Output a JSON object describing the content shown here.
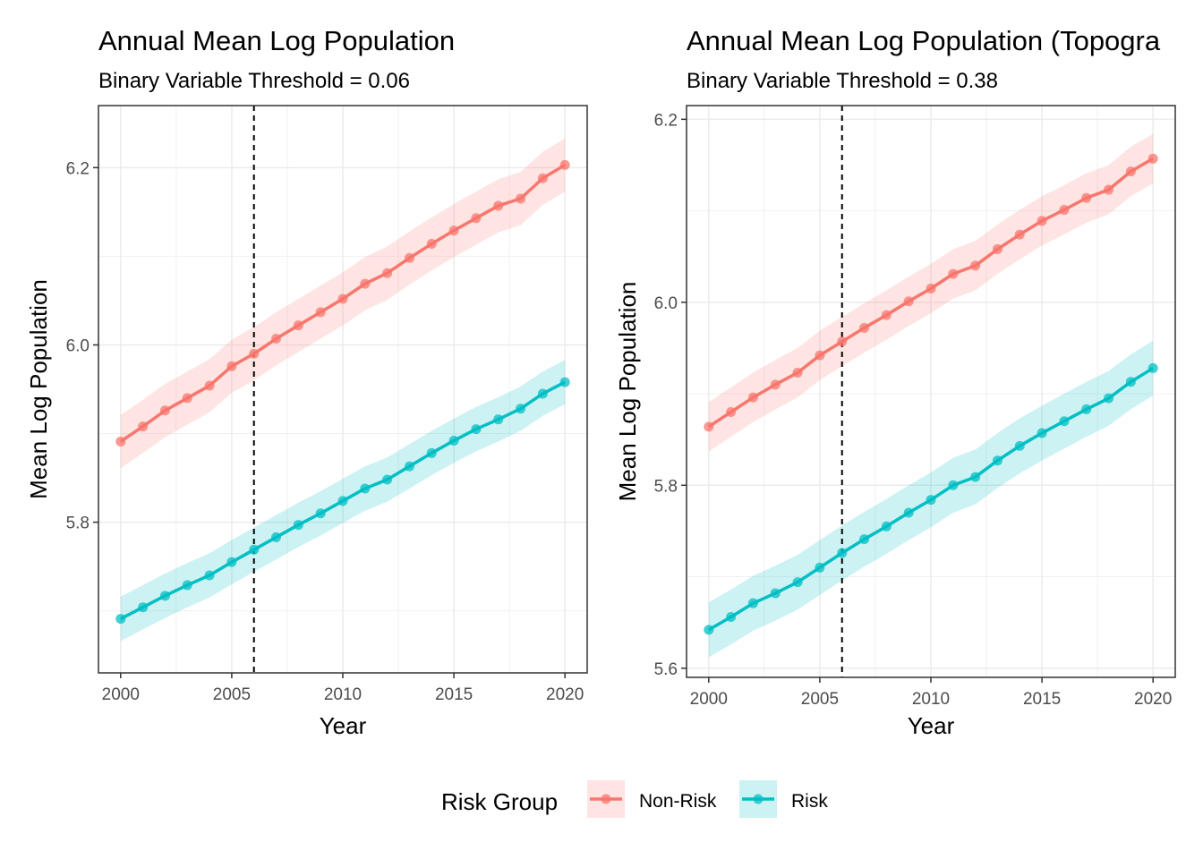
{
  "legend": {
    "title": "Risk Group",
    "entries": [
      {
        "name": "Non-Risk",
        "color": "#F8766D"
      },
      {
        "name": "Risk",
        "color": "#00BFC4"
      }
    ]
  },
  "chart_data": [
    {
      "type": "line",
      "title": "Annual Mean Log Population",
      "subtitle": "Binary Variable Threshold = 0.06",
      "xlabel": "Year",
      "ylabel": "Mean Log Population",
      "xlim": [
        1999,
        2021
      ],
      "ylim": [
        5.63,
        6.27
      ],
      "x_ticks": [
        2000,
        2005,
        2010,
        2015,
        2020
      ],
      "y_ticks": [
        5.8,
        6.0,
        6.2
      ],
      "y_tick_labels": [
        "5.8",
        "6.0",
        "6.2"
      ],
      "grid": true,
      "vline_x": 2006,
      "x": [
        2000,
        2001,
        2002,
        2003,
        2004,
        2005,
        2006,
        2007,
        2008,
        2009,
        2010,
        2011,
        2012,
        2013,
        2014,
        2015,
        2016,
        2017,
        2018,
        2019,
        2020
      ],
      "series": [
        {
          "name": "Non-Risk",
          "color": "#F8766D",
          "values": [
            5.891,
            5.908,
            5.926,
            5.94,
            5.954,
            5.976,
            5.99,
            6.007,
            6.022,
            6.037,
            6.052,
            6.069,
            6.081,
            6.098,
            6.114,
            6.129,
            6.143,
            6.157,
            6.165,
            6.188,
            6.203
          ],
          "ci_half_width": 0.03
        },
        {
          "name": "Risk",
          "color": "#00BFC4",
          "values": [
            5.691,
            5.704,
            5.717,
            5.729,
            5.74,
            5.755,
            5.769,
            5.783,
            5.797,
            5.81,
            5.824,
            5.838,
            5.848,
            5.863,
            5.878,
            5.892,
            5.905,
            5.916,
            5.928,
            5.945,
            5.958
          ],
          "ci_half_width": 0.025
        }
      ]
    },
    {
      "type": "line",
      "title": "Annual Mean Log Population (Topogra",
      "subtitle": "Binary Variable Threshold = 0.38",
      "xlabel": "Year",
      "ylabel": "Mean Log Population",
      "xlim": [
        1999,
        2021
      ],
      "ylim": [
        5.59,
        6.215
      ],
      "x_ticks": [
        2000,
        2005,
        2010,
        2015,
        2020
      ],
      "y_ticks": [
        5.6,
        5.8,
        6.0,
        6.2
      ],
      "y_tick_labels": [
        "5.6",
        "5.8",
        "6.0",
        "6.2"
      ],
      "grid": true,
      "vline_x": 2006,
      "x": [
        2000,
        2001,
        2002,
        2003,
        2004,
        2005,
        2006,
        2007,
        2008,
        2009,
        2010,
        2011,
        2012,
        2013,
        2014,
        2015,
        2016,
        2017,
        2018,
        2019,
        2020
      ],
      "series": [
        {
          "name": "Non-Risk",
          "color": "#F8766D",
          "values": [
            5.864,
            5.88,
            5.896,
            5.91,
            5.923,
            5.942,
            5.957,
            5.972,
            5.986,
            6.001,
            6.015,
            6.031,
            6.04,
            6.058,
            6.074,
            6.089,
            6.101,
            6.114,
            6.123,
            6.143,
            6.157
          ],
          "ci_half_width": 0.027
        },
        {
          "name": "Risk",
          "color": "#00BFC4",
          "values": [
            5.642,
            5.656,
            5.671,
            5.682,
            5.694,
            5.71,
            5.726,
            5.741,
            5.755,
            5.77,
            5.784,
            5.8,
            5.809,
            5.827,
            5.843,
            5.857,
            5.87,
            5.883,
            5.895,
            5.913,
            5.928
          ],
          "ci_half_width": 0.03
        }
      ]
    }
  ]
}
